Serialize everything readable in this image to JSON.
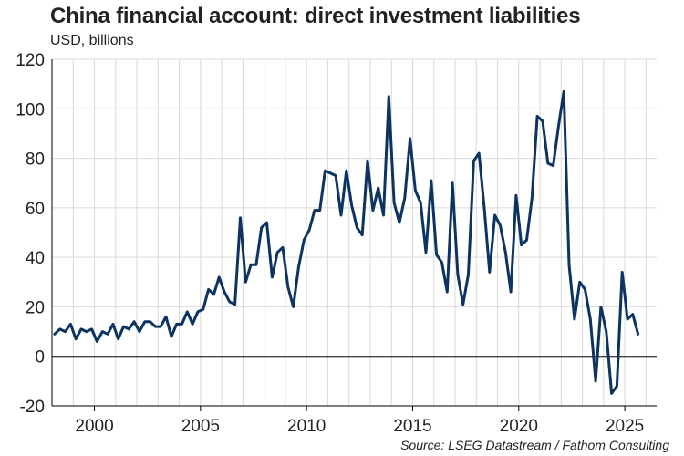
{
  "header": {
    "title": "China financial account: direct investment liabilities",
    "subtitle": "USD, billions"
  },
  "footer": {
    "source": "Source: LSEG Datastream / Fathom Consulting"
  },
  "chart_data": {
    "type": "line",
    "title": "China financial account: direct investment liabilities",
    "ylabel": "USD, billions",
    "xlabel": "",
    "ylim": [
      -20,
      120
    ],
    "xlim": [
      1998.0,
      2026.5
    ],
    "yticks": [
      -20,
      0,
      20,
      40,
      60,
      80,
      100,
      120
    ],
    "xticks": [
      2000,
      2005,
      2010,
      2015,
      2020,
      2025
    ],
    "grid": true,
    "legend": "none",
    "colors": {
      "line": "#0d3461",
      "grid": "#d9d9d9",
      "zero": "#000000"
    },
    "series": [
      {
        "frequency": "quarterly",
        "start": "1998-Q1",
        "values": [
          9,
          11,
          10,
          13,
          7,
          11,
          10,
          11,
          6,
          10,
          9,
          13,
          7,
          12,
          11,
          14,
          10,
          14,
          14,
          12,
          12,
          16,
          8,
          13,
          13,
          18,
          13,
          18,
          19,
          27,
          25,
          32,
          26,
          22,
          21,
          56,
          30,
          37,
          37,
          52,
          54,
          32,
          42,
          44,
          28,
          20,
          36,
          47,
          51,
          59,
          59,
          75,
          74,
          73,
          57,
          75,
          61,
          52,
          49,
          79,
          59,
          68,
          57,
          105,
          62,
          54,
          64,
          88,
          67,
          62,
          42,
          71,
          41,
          38,
          26,
          70,
          33,
          21,
          33,
          79,
          82,
          60,
          34,
          57,
          53,
          42,
          26,
          65,
          45,
          47,
          64,
          97,
          95,
          78,
          77,
          93,
          107,
          37,
          15,
          30,
          27,
          15,
          -10,
          20,
          10,
          -15,
          -12,
          34,
          15,
          17,
          9
        ]
      }
    ]
  }
}
